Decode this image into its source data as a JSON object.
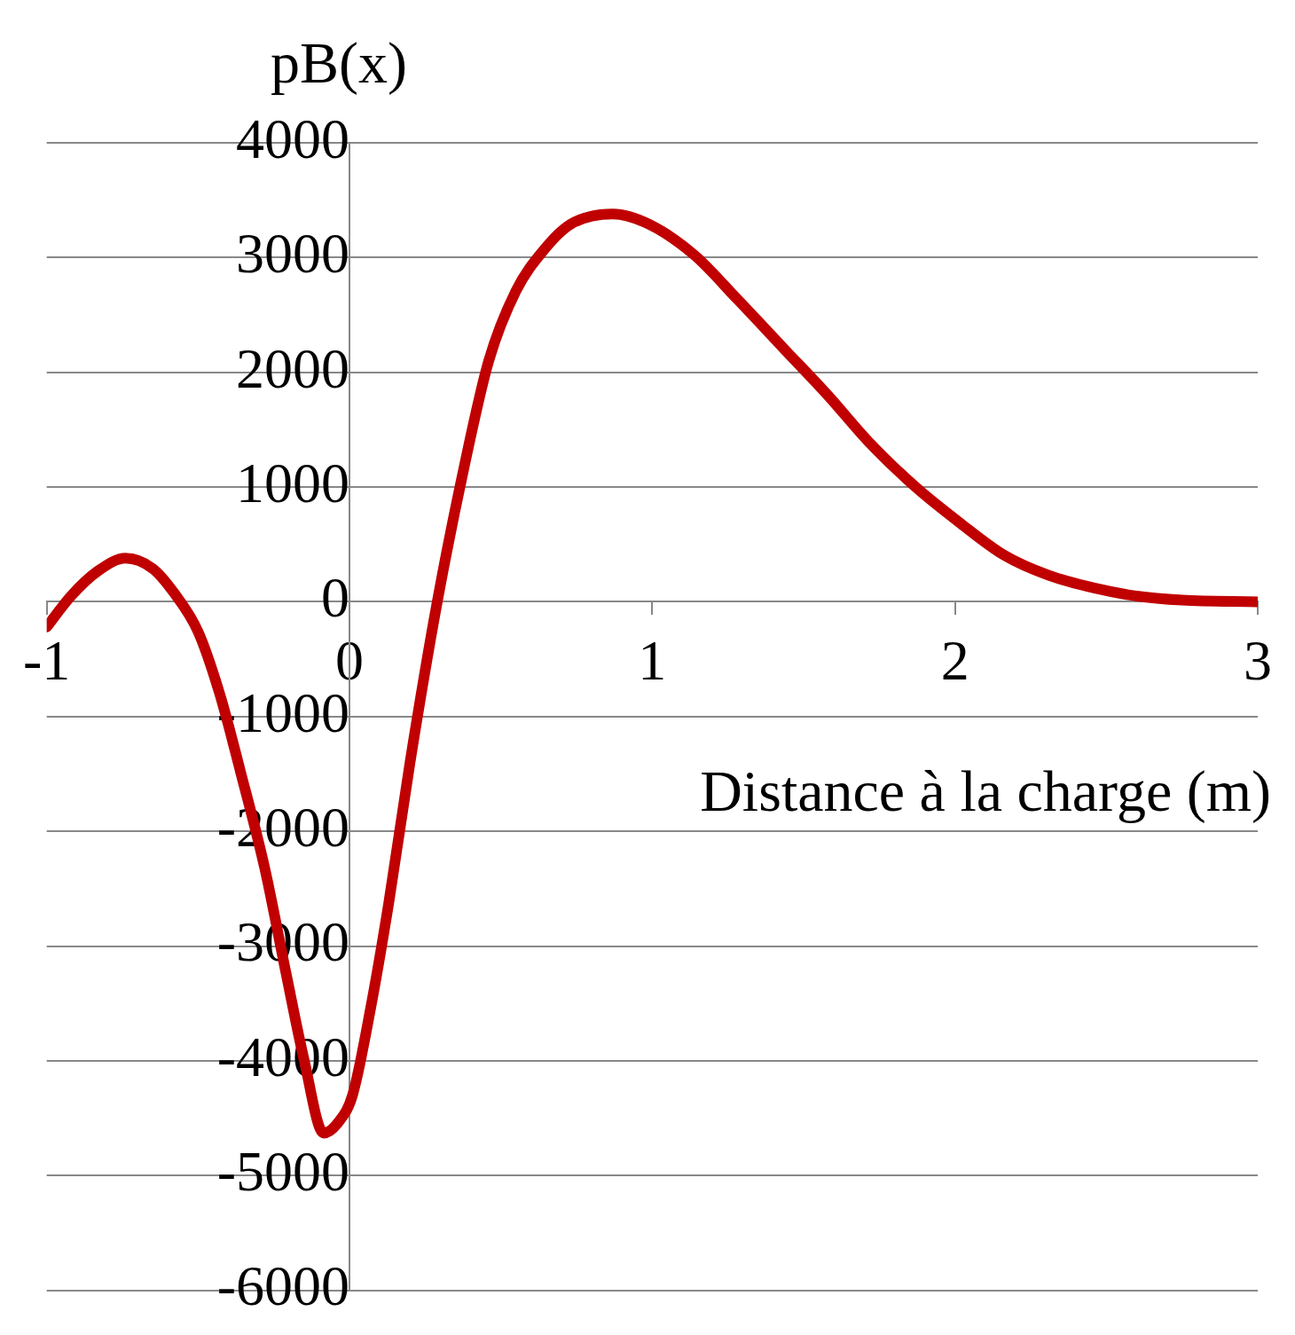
{
  "chart_data": {
    "type": "line",
    "xlabel": "Distance à la charge (m)",
    "ylabel": "pB(x)",
    "x": [
      -1,
      -0.92,
      -0.83,
      -0.74,
      -0.65,
      -0.58,
      -0.5,
      -0.43,
      -0.36,
      -0.28,
      -0.21,
      -0.15,
      -0.085,
      -0.035,
      0.01,
      0.07,
      0.13,
      0.2,
      0.29,
      0.38,
      0.46,
      0.55,
      0.64,
      0.73,
      0.87,
      0.99,
      1.14,
      1.28,
      1.43,
      1.58,
      1.72,
      1.87,
      2.02,
      2.16,
      2.31,
      2.46,
      2.6,
      2.75,
      3
    ],
    "series": [
      {
        "color": "#c00000",
        "values": [
          -220,
          50,
          270,
          380,
          290,
          80,
          -260,
          -790,
          -1480,
          -2320,
          -3230,
          -3990,
          -4630,
          -4530,
          -4300,
          -3540,
          -2620,
          -1400,
          0,
          1190,
          2100,
          2710,
          3060,
          3290,
          3380,
          3290,
          3020,
          2640,
          2220,
          1800,
          1380,
          1000,
          680,
          410,
          230,
          120,
          50,
          15,
          0
        ]
      }
    ],
    "xlim": [
      -1,
      3
    ],
    "xticks": [
      -1,
      0,
      1,
      2,
      3
    ],
    "ylim": [
      -6000,
      4000
    ],
    "yticks": [
      -6000,
      -5000,
      -4000,
      -3000,
      -2000,
      -1000,
      0,
      1000,
      2000,
      3000,
      4000
    ],
    "grid": "y",
    "legend": false,
    "marker": "none",
    "line_style": "solid"
  }
}
